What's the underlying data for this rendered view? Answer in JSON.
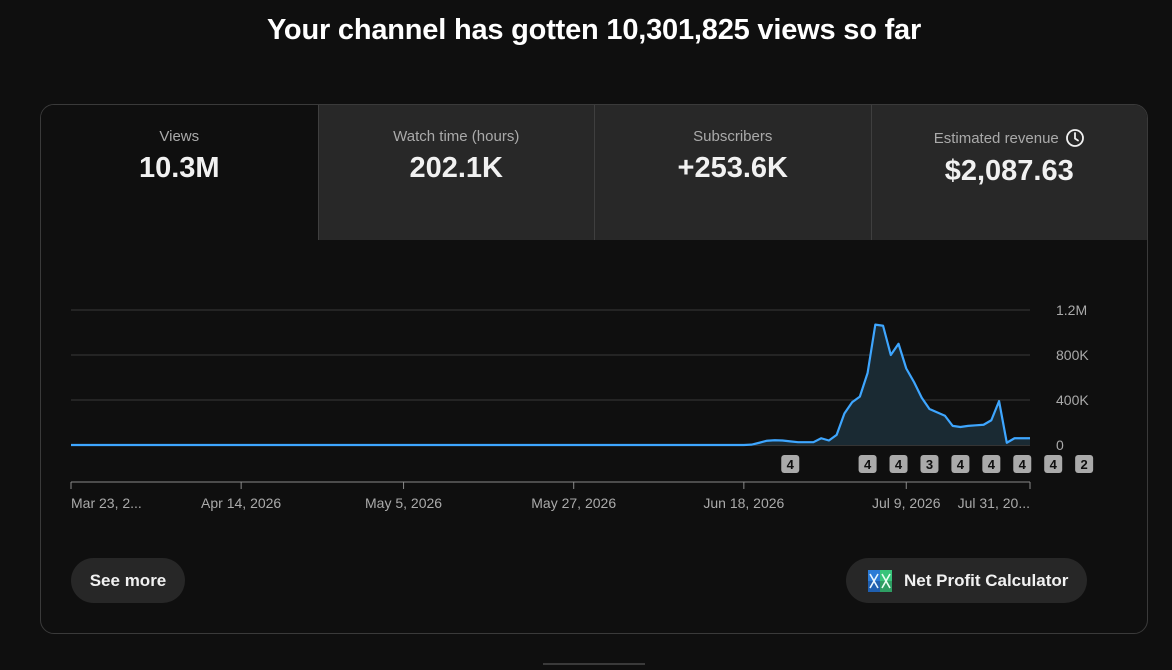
{
  "headline": "Your channel has gotten 10,301,825 views so far",
  "tabs": [
    {
      "label": "Views",
      "value": "10.3M",
      "active": true
    },
    {
      "label": "Watch time (hours)",
      "value": "202.1K",
      "active": false
    },
    {
      "label": "Subscribers",
      "value": "+253.6K",
      "active": false
    },
    {
      "label": "Estimated revenue",
      "value": "$2,087.63",
      "active": false,
      "icon": "clock-icon"
    }
  ],
  "chart_data": {
    "type": "area",
    "x_ticks": [
      "Mar 23, 2...",
      "Apr 14, 2026",
      "May 5, 2026",
      "May 27, 2026",
      "Jun 18, 2026",
      "Jul 9, 2026",
      "Jul 31, 20..."
    ],
    "y_ticks": [
      "1.2M",
      "800K",
      "400K",
      "0"
    ],
    "ylim": [
      0,
      1200000
    ],
    "line_color": "#3ea6ff",
    "fill_color": "#1a2a33",
    "series": [
      {
        "values": [
          0,
          0,
          0,
          0,
          0,
          0,
          0,
          0,
          0,
          0,
          0,
          0,
          0,
          0,
          0,
          0,
          0,
          0,
          0,
          0,
          0,
          0,
          0,
          0,
          0,
          0,
          0,
          0,
          0,
          0,
          0,
          0,
          0,
          0,
          0,
          0,
          0,
          0,
          0,
          0,
          0,
          0,
          0,
          0,
          0,
          0,
          0,
          0,
          0,
          0,
          0,
          0,
          0,
          0,
          0,
          0,
          0,
          0,
          0,
          0,
          0,
          0,
          0,
          0,
          0,
          0,
          0,
          0,
          0,
          0,
          0,
          0,
          0,
          0,
          0,
          0,
          0,
          0,
          0,
          0,
          0,
          0,
          0,
          0,
          0,
          0,
          0,
          0,
          3000,
          20000,
          38000,
          42000,
          40000,
          32000,
          25000,
          25000,
          25000,
          60000,
          40000,
          90000,
          280000,
          380000,
          430000,
          640000,
          1070000,
          1060000,
          800000,
          900000,
          680000,
          560000,
          420000,
          320000,
          290000,
          260000,
          170000,
          160000,
          170000,
          175000,
          180000,
          220000,
          390000,
          20000,
          60000,
          60000,
          60000
        ]
      }
    ],
    "markers": [
      {
        "day": 93,
        "label": "4"
      },
      {
        "day": 103,
        "label": "4"
      },
      {
        "day": 107,
        "label": "4"
      },
      {
        "day": 111,
        "label": "3"
      },
      {
        "day": 115,
        "label": "4"
      },
      {
        "day": 119,
        "label": "4"
      },
      {
        "day": 123,
        "label": "4"
      },
      {
        "day": 127,
        "label": "4"
      },
      {
        "day": 131,
        "label": "2"
      }
    ]
  },
  "buttons": {
    "see_more": "See more",
    "net_profit": "Net Profit Calculator",
    "net_profit_icon": "nexlev-logo-icon"
  }
}
